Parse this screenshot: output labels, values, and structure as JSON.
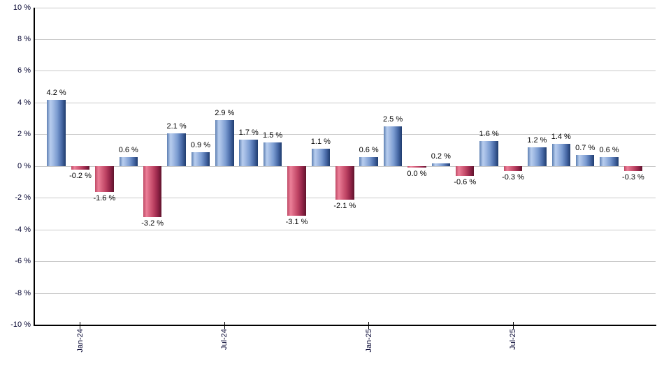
{
  "chart_data": {
    "type": "bar",
    "title": "",
    "xlabel": "",
    "ylabel": "",
    "ylim": [
      -10,
      10
    ],
    "y_tick_step": 2,
    "grid": true,
    "background_color": "#ffffff",
    "gridline_color": "#c9c9c9",
    "axis_color": "#000000",
    "axis_label_color": "#00002e",
    "value_label_color": "#000000",
    "positive_color": "#7b9cd1",
    "negative_color": "#c04565",
    "positive_gradient": [
      "#5d7fb2",
      "#b7cdee",
      "#a7bfe6",
      "#7b9cd1",
      "#4a6ba8",
      "#1f3c6e"
    ],
    "negative_gradient": [
      "#bf4a66",
      "#ec8099",
      "#dd6b86",
      "#c04565",
      "#96264a",
      "#5f132c"
    ],
    "values": [
      4.2,
      -0.2,
      -1.6,
      0.6,
      -3.2,
      2.1,
      0.9,
      2.9,
      1.7,
      1.5,
      -3.1,
      1.1,
      -2.1,
      0.6,
      2.5,
      0.0,
      0.2,
      -0.6,
      1.6,
      -0.3,
      1.2,
      1.4,
      0.7,
      0.6,
      -0.3
    ],
    "value_labels": [
      "4.2 %",
      "-0.2 %",
      "-1.6 %",
      "0.6 %",
      "-3.2 %",
      "2.1 %",
      "0.9 %",
      "2.9 %",
      "1.7 %",
      "1.5 %",
      "-3.1 %",
      "1.1 %",
      "-2.1 %",
      "0.6 %",
      "2.5 %",
      "0.0 %",
      "0.2 %",
      "-0.6 %",
      "1.6 %",
      "-0.3 %",
      "1.2 %",
      "1.4 %",
      "0.7 %",
      "0.6 %",
      "-0.3 %"
    ],
    "y_ticks": [
      {
        "value": 10,
        "label": "10 %"
      },
      {
        "value": 8,
        "label": "8 %"
      },
      {
        "value": 6,
        "label": "6 %"
      },
      {
        "value": 4,
        "label": "4 %"
      },
      {
        "value": 2,
        "label": "2 %"
      },
      {
        "value": 0,
        "label": "0 %"
      },
      {
        "value": -2,
        "label": "-2 %"
      },
      {
        "value": -4,
        "label": "-4 %"
      },
      {
        "value": -6,
        "label": "-6 %"
      },
      {
        "value": -8,
        "label": "-8 %"
      },
      {
        "value": -10,
        "label": "-10 %"
      }
    ],
    "x_ticks": [
      {
        "index": 1,
        "label": "Jan-24"
      },
      {
        "index": 7,
        "label": "Jul-24"
      },
      {
        "index": 13,
        "label": "Jan-25"
      },
      {
        "index": 19,
        "label": "Jul-25"
      }
    ],
    "legend_position": "none"
  }
}
